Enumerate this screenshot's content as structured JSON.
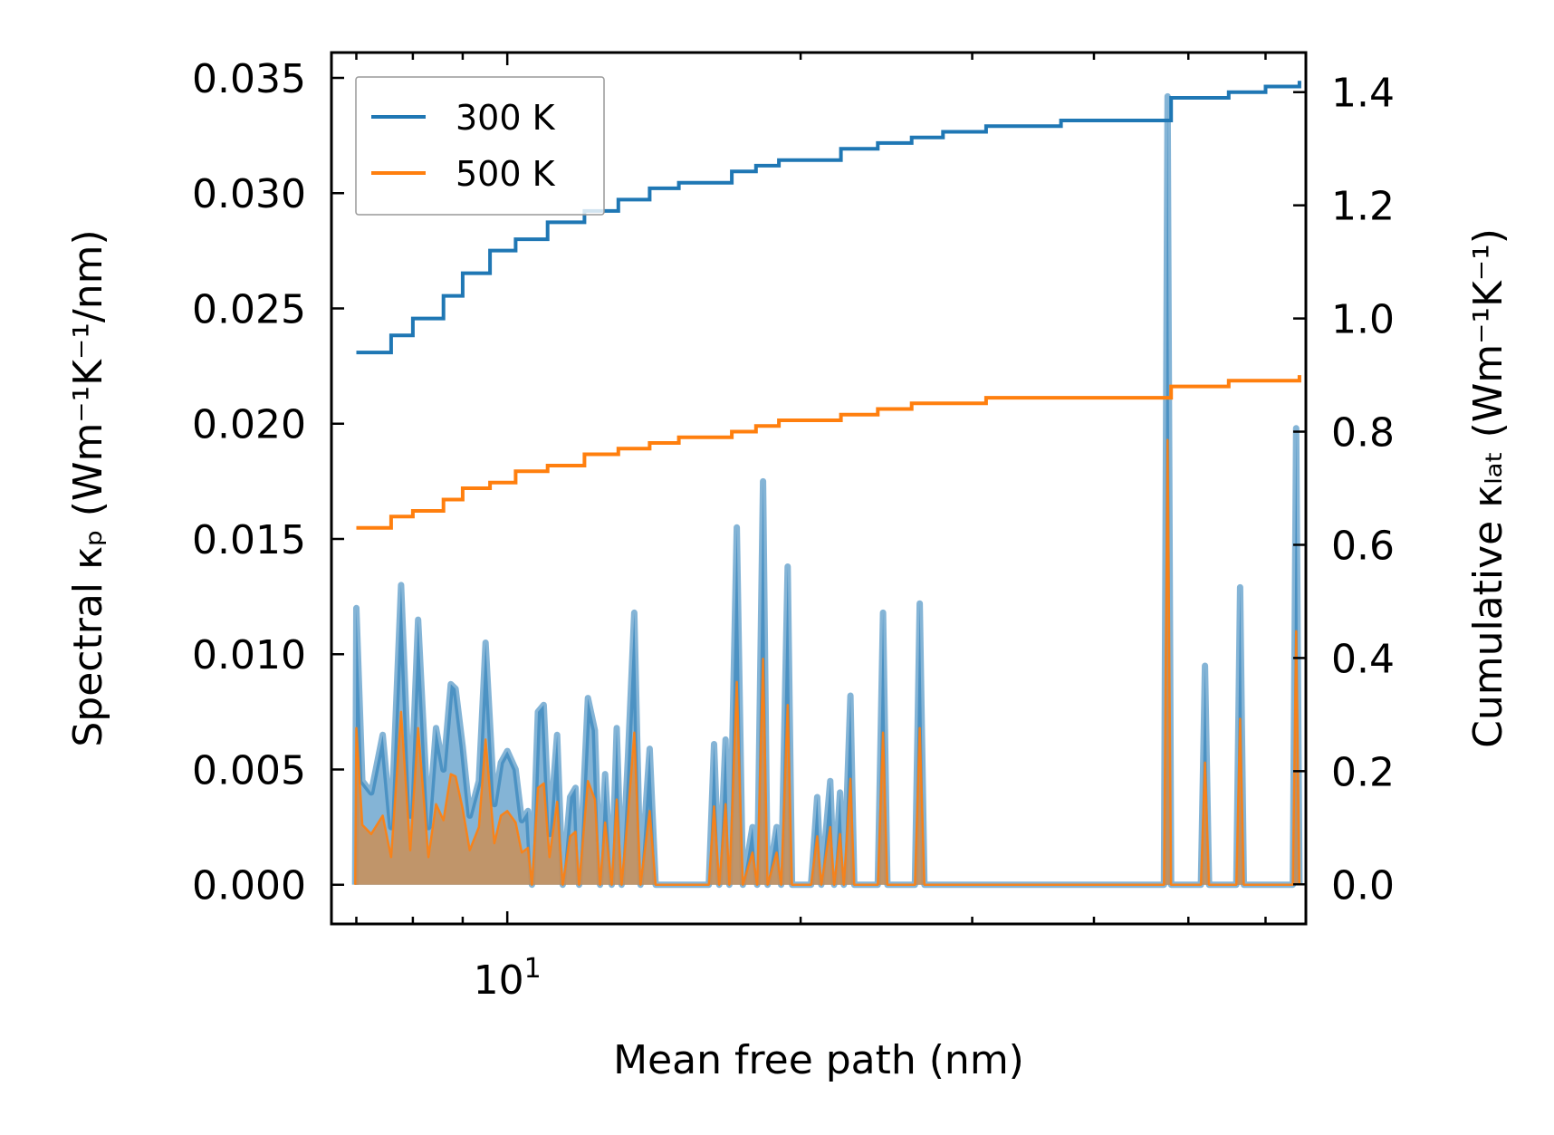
{
  "chart_data": {
    "type": "line",
    "title": "",
    "x_scale": "log",
    "xlabel": "Mean free path (nm)",
    "ylabel_left": "Spectral κₚ (Wm⁻¹K⁻¹/nm)",
    "ylabel_right": "Cumulative κₗₐₜ (Wm⁻¹K⁻¹)",
    "xlim": [
      6.6,
      66
    ],
    "ylim_left": [
      -0.0017,
      0.0361
    ],
    "ylim_right": [
      -0.07,
      1.47
    ],
    "x_tick_labels": [
      {
        "value": 10,
        "base": "10",
        "exp": "1"
      }
    ],
    "y_left_ticks": [
      "0.000",
      "0.005",
      "0.010",
      "0.015",
      "0.020",
      "0.025",
      "0.030",
      "0.035"
    ],
    "y_right_ticks": [
      "0.0",
      "0.2",
      "0.4",
      "0.6",
      "0.8",
      "1.0",
      "1.2",
      "1.4"
    ],
    "legend": {
      "position": "top-left",
      "entries": [
        "300 K",
        "500 K"
      ]
    },
    "colors": {
      "s300": "#1f77b4",
      "s500": "#ff7f0e",
      "fill500": "#c7915e"
    },
    "series": [
      {
        "name": "300 K",
        "cumulative": [
          [
            7.0,
            0.94
          ],
          [
            7.6,
            0.97
          ],
          [
            8.0,
            1.0
          ],
          [
            8.6,
            1.04
          ],
          [
            9.0,
            1.08
          ],
          [
            9.6,
            1.12
          ],
          [
            10.2,
            1.14
          ],
          [
            11.0,
            1.17
          ],
          [
            12.0,
            1.19
          ],
          [
            13.0,
            1.21
          ],
          [
            14.0,
            1.23
          ],
          [
            15.0,
            1.24
          ],
          [
            16.0,
            1.24
          ],
          [
            17.0,
            1.26
          ],
          [
            18.0,
            1.27
          ],
          [
            19.0,
            1.28
          ],
          [
            20.0,
            1.28
          ],
          [
            22.0,
            1.3
          ],
          [
            24.0,
            1.31
          ],
          [
            26.0,
            1.32
          ],
          [
            28.0,
            1.33
          ],
          [
            31.0,
            1.34
          ],
          [
            34.0,
            1.34
          ],
          [
            37.0,
            1.35
          ],
          [
            40.0,
            1.35
          ],
          [
            44.0,
            1.35
          ],
          [
            47.5,
            1.35
          ],
          [
            48.0,
            1.39
          ],
          [
            52.0,
            1.39
          ],
          [
            55.0,
            1.4
          ],
          [
            60.0,
            1.41
          ],
          [
            65.0,
            1.42
          ]
        ],
        "spectral": [
          [
            6.98,
            0.0
          ],
          [
            7.0,
            0.012
          ],
          [
            7.1,
            0.0045
          ],
          [
            7.25,
            0.004
          ],
          [
            7.45,
            0.0065
          ],
          [
            7.6,
            0.0025
          ],
          [
            7.78,
            0.013
          ],
          [
            7.95,
            0.003
          ],
          [
            8.1,
            0.0115
          ],
          [
            8.3,
            0.0025
          ],
          [
            8.45,
            0.0068
          ],
          [
            8.6,
            0.005
          ],
          [
            8.75,
            0.0087
          ],
          [
            8.85,
            0.0085
          ],
          [
            9.0,
            0.006
          ],
          [
            9.15,
            0.003
          ],
          [
            9.35,
            0.0045
          ],
          [
            9.5,
            0.0105
          ],
          [
            9.7,
            0.0035
          ],
          [
            9.85,
            0.0053
          ],
          [
            10.0,
            0.0058
          ],
          [
            10.2,
            0.005
          ],
          [
            10.35,
            0.0028
          ],
          [
            10.5,
            0.0032
          ],
          [
            10.6,
            0.0
          ],
          [
            10.75,
            0.0075
          ],
          [
            10.9,
            0.0078
          ],
          [
            11.05,
            0.0022
          ],
          [
            11.25,
            0.0065
          ],
          [
            11.4,
            0.0
          ],
          [
            11.6,
            0.0038
          ],
          [
            11.75,
            0.0042
          ],
          [
            11.85,
            0.0
          ],
          [
            12.1,
            0.0081
          ],
          [
            12.3,
            0.0067
          ],
          [
            12.45,
            0.0
          ],
          [
            12.6,
            0.0048
          ],
          [
            12.8,
            0.0
          ],
          [
            12.95,
            0.0068
          ],
          [
            13.1,
            0.0
          ],
          [
            13.3,
            0.0055
          ],
          [
            13.5,
            0.0118
          ],
          [
            13.7,
            0.0
          ],
          [
            14.0,
            0.0059
          ],
          [
            14.2,
            0.0
          ],
          [
            16.1,
            0.0
          ],
          [
            16.3,
            0.0061
          ],
          [
            16.5,
            0.0
          ],
          [
            16.75,
            0.0063
          ],
          [
            16.9,
            0.0
          ],
          [
            17.2,
            0.0155
          ],
          [
            17.45,
            0.0
          ],
          [
            17.85,
            0.0025
          ],
          [
            18.05,
            0.0
          ],
          [
            18.3,
            0.0175
          ],
          [
            18.5,
            0.0
          ],
          [
            18.9,
            0.0025
          ],
          [
            19.1,
            0.0
          ],
          [
            19.4,
            0.0138
          ],
          [
            19.6,
            0.0
          ],
          [
            20.5,
            0.0
          ],
          [
            20.8,
            0.0038
          ],
          [
            21.0,
            0.0
          ],
          [
            21.45,
            0.0045
          ],
          [
            21.65,
            0.0
          ],
          [
            21.95,
            0.004
          ],
          [
            22.15,
            0.0
          ],
          [
            22.5,
            0.0082
          ],
          [
            22.7,
            0.0
          ],
          [
            24.0,
            0.0
          ],
          [
            24.3,
            0.0118
          ],
          [
            24.55,
            0.0
          ],
          [
            26.2,
            0.0
          ],
          [
            26.5,
            0.0122
          ],
          [
            26.8,
            0.0
          ],
          [
            47.2,
            0.0
          ],
          [
            47.6,
            0.0342
          ],
          [
            48.0,
            0.0
          ],
          [
            51.5,
            0.0
          ],
          [
            52.0,
            0.0095
          ],
          [
            52.5,
            0.0
          ],
          [
            56.0,
            0.0
          ],
          [
            56.5,
            0.0129
          ],
          [
            57.0,
            0.0
          ],
          [
            64.0,
            0.0
          ],
          [
            64.5,
            0.0198
          ],
          [
            65.0,
            0.0
          ]
        ]
      },
      {
        "name": "500 K",
        "cumulative": [
          [
            7.0,
            0.63
          ],
          [
            7.6,
            0.65
          ],
          [
            8.0,
            0.66
          ],
          [
            8.6,
            0.68
          ],
          [
            9.0,
            0.7
          ],
          [
            9.6,
            0.71
          ],
          [
            10.2,
            0.73
          ],
          [
            11.0,
            0.74
          ],
          [
            12.0,
            0.76
          ],
          [
            13.0,
            0.77
          ],
          [
            14.0,
            0.78
          ],
          [
            15.0,
            0.79
          ],
          [
            16.0,
            0.79
          ],
          [
            17.0,
            0.8
          ],
          [
            18.0,
            0.81
          ],
          [
            19.0,
            0.82
          ],
          [
            20.0,
            0.82
          ],
          [
            22.0,
            0.83
          ],
          [
            24.0,
            0.84
          ],
          [
            26.0,
            0.85
          ],
          [
            28.0,
            0.85
          ],
          [
            31.0,
            0.86
          ],
          [
            34.0,
            0.86
          ],
          [
            37.0,
            0.86
          ],
          [
            40.0,
            0.86
          ],
          [
            44.0,
            0.86
          ],
          [
            47.5,
            0.86
          ],
          [
            48.0,
            0.88
          ],
          [
            52.0,
            0.88
          ],
          [
            55.0,
            0.89
          ],
          [
            60.0,
            0.89
          ],
          [
            65.0,
            0.9
          ]
        ],
        "spectral": [
          [
            6.98,
            0.0
          ],
          [
            7.0,
            0.0068
          ],
          [
            7.1,
            0.0026
          ],
          [
            7.25,
            0.0022
          ],
          [
            7.45,
            0.003
          ],
          [
            7.6,
            0.0012
          ],
          [
            7.78,
            0.0075
          ],
          [
            7.95,
            0.0015
          ],
          [
            8.1,
            0.0068
          ],
          [
            8.3,
            0.0012
          ],
          [
            8.45,
            0.0035
          ],
          [
            8.6,
            0.0028
          ],
          [
            8.75,
            0.0048
          ],
          [
            8.85,
            0.0047
          ],
          [
            9.0,
            0.0033
          ],
          [
            9.15,
            0.0015
          ],
          [
            9.35,
            0.0025
          ],
          [
            9.5,
            0.0063
          ],
          [
            9.7,
            0.0018
          ],
          [
            9.85,
            0.003
          ],
          [
            10.0,
            0.0032
          ],
          [
            10.2,
            0.0027
          ],
          [
            10.35,
            0.0014
          ],
          [
            10.5,
            0.0016
          ],
          [
            10.6,
            0.0
          ],
          [
            10.75,
            0.0042
          ],
          [
            10.9,
            0.0044
          ],
          [
            11.05,
            0.0012
          ],
          [
            11.25,
            0.0036
          ],
          [
            11.4,
            0.0
          ],
          [
            11.6,
            0.0021
          ],
          [
            11.75,
            0.0023
          ],
          [
            11.85,
            0.0
          ],
          [
            12.1,
            0.0045
          ],
          [
            12.3,
            0.0037
          ],
          [
            12.45,
            0.0
          ],
          [
            12.6,
            0.0027
          ],
          [
            12.8,
            0.0
          ],
          [
            12.95,
            0.0037
          ],
          [
            13.1,
            0.0
          ],
          [
            13.3,
            0.003
          ],
          [
            13.5,
            0.0066
          ],
          [
            13.7,
            0.0
          ],
          [
            14.0,
            0.0032
          ],
          [
            14.2,
            0.0
          ],
          [
            16.1,
            0.0
          ],
          [
            16.3,
            0.0034
          ],
          [
            16.5,
            0.0
          ],
          [
            16.75,
            0.0035
          ],
          [
            16.9,
            0.0
          ],
          [
            17.2,
            0.0088
          ],
          [
            17.45,
            0.0
          ],
          [
            17.85,
            0.0014
          ],
          [
            18.05,
            0.0
          ],
          [
            18.3,
            0.0098
          ],
          [
            18.5,
            0.0
          ],
          [
            18.9,
            0.0014
          ],
          [
            19.1,
            0.0
          ],
          [
            19.4,
            0.0078
          ],
          [
            19.6,
            0.0
          ],
          [
            20.5,
            0.0
          ],
          [
            20.8,
            0.0021
          ],
          [
            21.0,
            0.0
          ],
          [
            21.45,
            0.0025
          ],
          [
            21.65,
            0.0
          ],
          [
            21.95,
            0.0022
          ],
          [
            22.15,
            0.0
          ],
          [
            22.5,
            0.0046
          ],
          [
            22.7,
            0.0
          ],
          [
            24.0,
            0.0
          ],
          [
            24.3,
            0.0066
          ],
          [
            24.55,
            0.0
          ],
          [
            26.2,
            0.0
          ],
          [
            26.5,
            0.0068
          ],
          [
            26.8,
            0.0
          ],
          [
            47.2,
            0.0
          ],
          [
            47.6,
            0.0193
          ],
          [
            48.0,
            0.0
          ],
          [
            51.5,
            0.0
          ],
          [
            52.0,
            0.0053
          ],
          [
            52.5,
            0.0
          ],
          [
            56.0,
            0.0
          ],
          [
            56.5,
            0.0072
          ],
          [
            57.0,
            0.0
          ],
          [
            64.0,
            0.0
          ],
          [
            64.5,
            0.011
          ],
          [
            65.0,
            0.0
          ]
        ]
      }
    ]
  }
}
